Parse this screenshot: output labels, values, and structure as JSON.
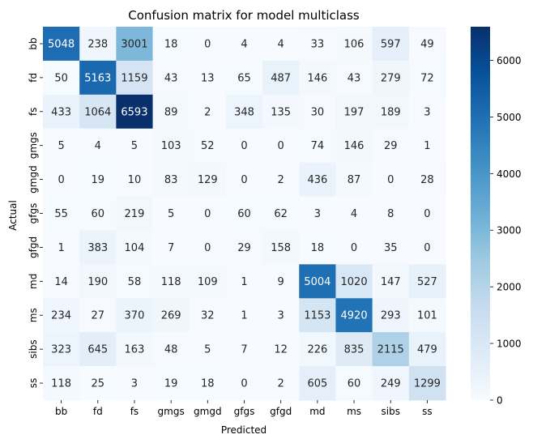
{
  "chart_data": {
    "type": "heatmap",
    "title": "Confusion matrix for model multiclass",
    "xlabel": "Predicted",
    "ylabel": "Actual",
    "x_categories": [
      "bb",
      "fd",
      "fs",
      "gmgs",
      "gmgd",
      "gfgs",
      "gfgd",
      "md",
      "ms",
      "sibs",
      "ss"
    ],
    "y_categories": [
      "bb",
      "fd",
      "fs",
      "gmgs",
      "gmgd",
      "gfgs",
      "gfgd",
      "md",
      "ms",
      "sibs",
      "ss"
    ],
    "values": [
      [
        5048,
        238,
        3001,
        18,
        0,
        4,
        4,
        33,
        106,
        597,
        49
      ],
      [
        50,
        5163,
        1159,
        43,
        13,
        65,
        487,
        146,
        43,
        279,
        72
      ],
      [
        433,
        1064,
        6593,
        89,
        2,
        348,
        135,
        30,
        197,
        189,
        3
      ],
      [
        5,
        4,
        5,
        103,
        52,
        0,
        0,
        74,
        146,
        29,
        1
      ],
      [
        0,
        19,
        10,
        83,
        129,
        0,
        2,
        436,
        87,
        0,
        28
      ],
      [
        55,
        60,
        219,
        5,
        0,
        60,
        62,
        3,
        4,
        8,
        0
      ],
      [
        1,
        383,
        104,
        7,
        0,
        29,
        158,
        18,
        0,
        35,
        0
      ],
      [
        14,
        190,
        58,
        118,
        109,
        1,
        9,
        5004,
        1020,
        147,
        527
      ],
      [
        234,
        27,
        370,
        269,
        32,
        1,
        3,
        1153,
        4920,
        293,
        101
      ],
      [
        323,
        645,
        163,
        48,
        5,
        7,
        12,
        226,
        835,
        2115,
        479
      ],
      [
        118,
        25,
        3,
        19,
        18,
        0,
        2,
        605,
        60,
        249,
        1299
      ]
    ],
    "colorscale": "Blues",
    "vmin": 0,
    "vmax": 6593,
    "colorbar_ticks": [
      0,
      1000,
      2000,
      3000,
      4000,
      5000,
      6000
    ],
    "colors": {
      "low": "#f7fbff",
      "high": "#08306b",
      "text_dark": "#262626",
      "text_light": "#ffffff"
    }
  }
}
